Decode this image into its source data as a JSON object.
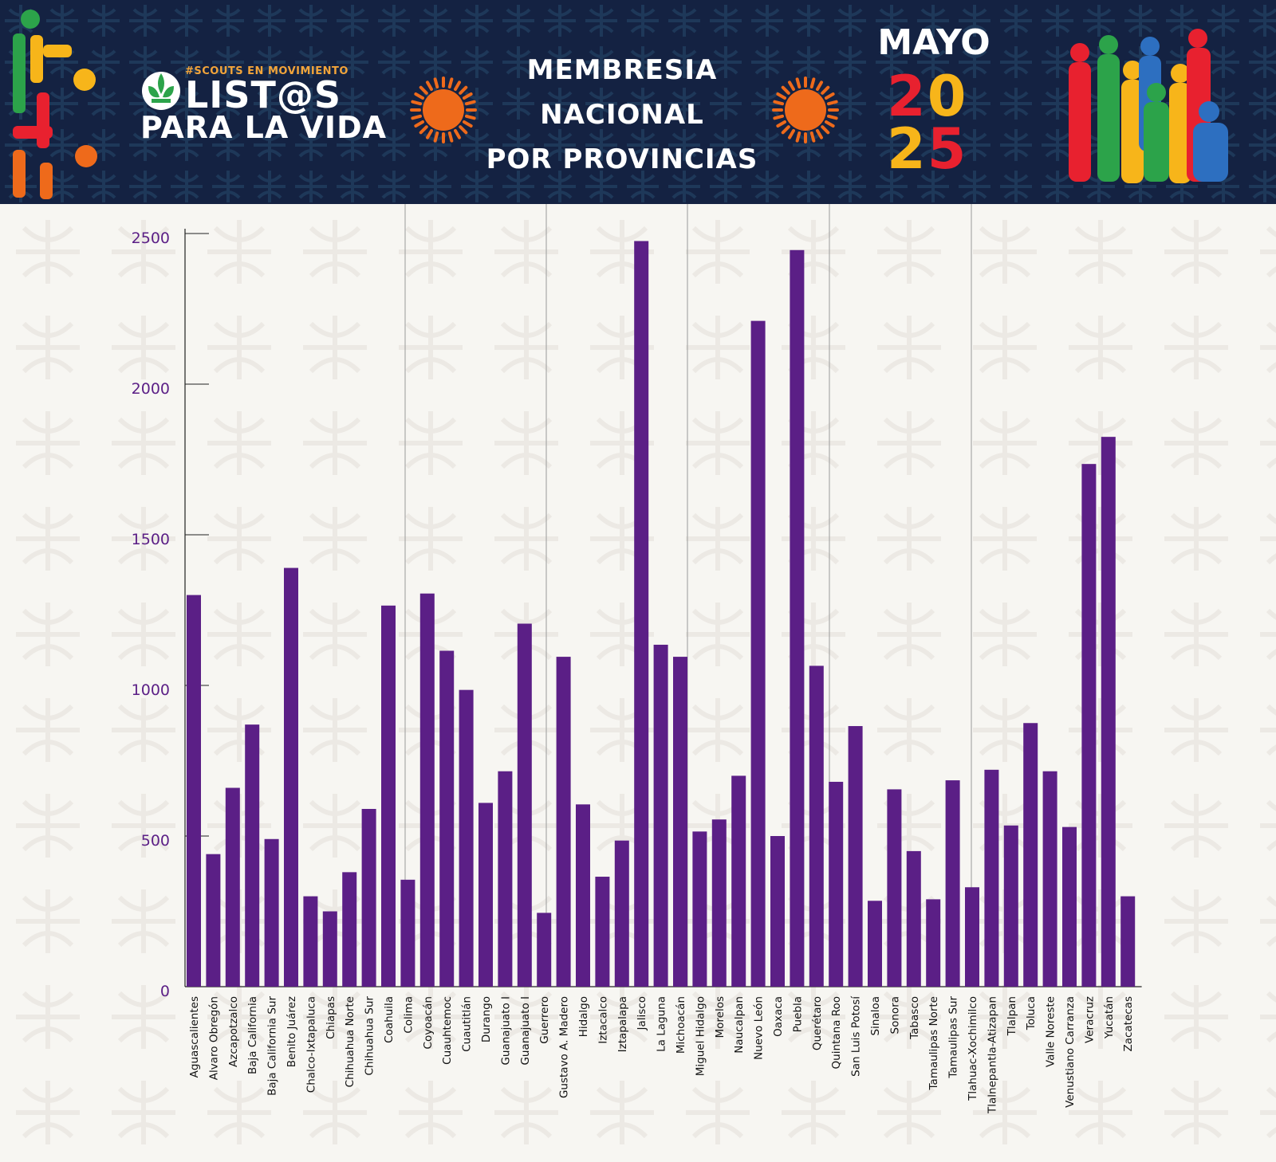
{
  "header": {
    "hashtag": "#SCOUTS EN MOVIMIENTO",
    "brand_line1": "LIST@S",
    "brand_line2": "PARA LA VIDA",
    "title_lines": [
      "MEMBRESIA",
      "NACIONAL",
      "POR PROVINCIAS"
    ],
    "month": "MAYO",
    "year_top": [
      "2",
      "0"
    ],
    "year_bottom": [
      "2",
      "5"
    ]
  },
  "colors": {
    "banner": "#142242",
    "bar": "#5b1f86",
    "tick_label": "#5b1f86",
    "sun": "#ee6a1b"
  },
  "chart_data": {
    "type": "bar",
    "title": "",
    "xlabel": "",
    "ylabel": "",
    "ylim": [
      0,
      2500
    ],
    "yticks": [
      0,
      500,
      1000,
      1500,
      2000,
      2500
    ],
    "grid": false,
    "categories": [
      "Aguascalientes",
      "Alvaro Obregón",
      "Azcapotzalco",
      "Baja California",
      "Baja California Sur",
      "Benito Juárez",
      "Chalco-Ixtapaluca",
      "Chiapas",
      "Chihuahua Norte",
      "Chihuahua Sur",
      "Coahuila",
      "Colima",
      "Coyoacán",
      "Cuauhtemoc",
      "Cuautitlán",
      "Durango",
      "Guanajuato I",
      "Guanajuato I",
      "Guerrero",
      "Gustavo A. Madero",
      "Hidalgo",
      "Iztacalco",
      "Iztapalapa",
      "Jalisco",
      "La Laguna",
      "Michoacán",
      "Miguel Hidalgo",
      "Morelos",
      "Naucalpan",
      "Nuevo León",
      "Oaxaca",
      "Puebla",
      "Querétaro",
      "Quintana Roo",
      "San Luis Potosí",
      "Sinaloa",
      "Sonora",
      "Tabasco",
      "Tamaulipas Norte",
      "Tamaulipas Sur",
      "Tlahuac-Xochimilco",
      "Tlalnepantla-Atizapan",
      "Tlalpan",
      "Toluca",
      "Valle Noreste",
      "Venustiano Carranza",
      "Veracruz",
      "Yucatán",
      "Zacatecas"
    ],
    "values": [
      1300,
      440,
      660,
      870,
      490,
      1390,
      300,
      250,
      380,
      590,
      1265,
      355,
      1305,
      1115,
      985,
      610,
      715,
      1205,
      245,
      1095,
      605,
      365,
      485,
      2475,
      1135,
      1095,
      515,
      555,
      700,
      2210,
      500,
      2445,
      1065,
      680,
      865,
      285,
      655,
      450,
      290,
      685,
      330,
      720,
      535,
      875,
      715,
      530,
      1735,
      1825,
      300
    ]
  }
}
